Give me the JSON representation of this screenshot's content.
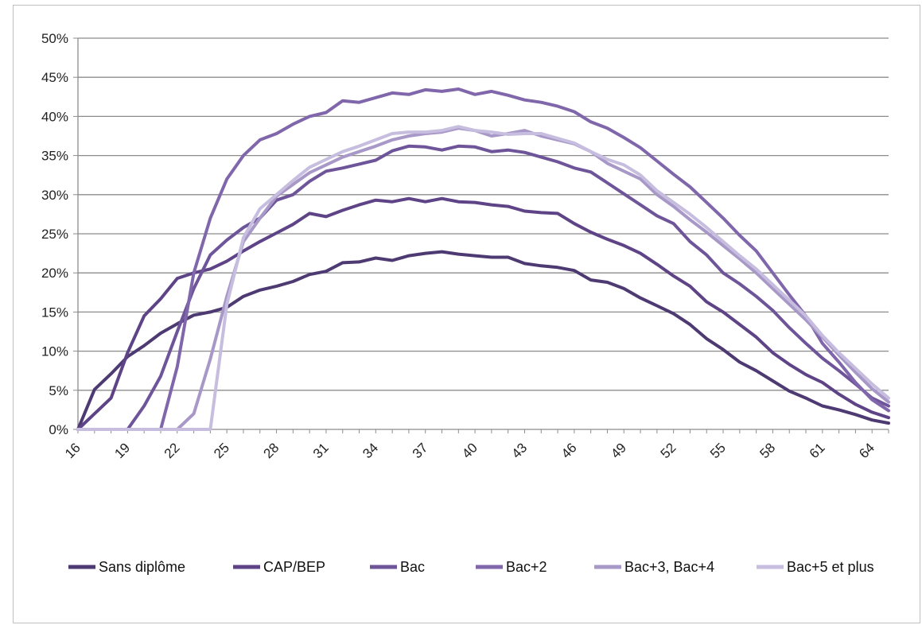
{
  "chart_data": {
    "type": "line",
    "title": "",
    "xlabel": "",
    "ylabel": "",
    "x": [
      16,
      17,
      18,
      19,
      20,
      21,
      22,
      23,
      24,
      25,
      26,
      27,
      28,
      29,
      30,
      31,
      32,
      33,
      34,
      35,
      36,
      37,
      38,
      39,
      40,
      41,
      42,
      43,
      44,
      45,
      46,
      47,
      48,
      49,
      50,
      51,
      52,
      53,
      54,
      55,
      56,
      57,
      58,
      59,
      60,
      61,
      62,
      63,
      64,
      65
    ],
    "xlim": [
      16,
      65
    ],
    "ylim": [
      0,
      0.5
    ],
    "x_ticks": [
      16,
      19,
      22,
      25,
      28,
      31,
      34,
      37,
      40,
      43,
      46,
      49,
      52,
      55,
      58,
      61,
      64
    ],
    "y_ticks": [
      0,
      0.05,
      0.1,
      0.15,
      0.2,
      0.25,
      0.3,
      0.35,
      0.4,
      0.45,
      0.5
    ],
    "y_tick_labels": [
      "0%",
      "5%",
      "10%",
      "15%",
      "20%",
      "25%",
      "30%",
      "35%",
      "40%",
      "45%",
      "50%"
    ],
    "grid": "horizontal",
    "legend_position": "bottom",
    "series": [
      {
        "name": "Sans diplôme",
        "color": "#4e3a72",
        "values": [
          0.0,
          0.051,
          0.071,
          0.093,
          0.107,
          0.123,
          0.135,
          0.146,
          0.15,
          0.156,
          0.17,
          0.178,
          0.183,
          0.189,
          0.198,
          0.202,
          0.213,
          0.214,
          0.219,
          0.216,
          0.222,
          0.225,
          0.227,
          0.224,
          0.222,
          0.22,
          0.22,
          0.212,
          0.209,
          0.207,
          0.203,
          0.191,
          0.188,
          0.18,
          0.168,
          0.158,
          0.148,
          0.134,
          0.116,
          0.102,
          0.086,
          0.075,
          0.062,
          0.049,
          0.04,
          0.03,
          0.025,
          0.019,
          0.012,
          0.008
        ]
      },
      {
        "name": "CAP/BEP",
        "color": "#5e4487",
        "values": [
          0.0,
          0.02,
          0.04,
          0.098,
          0.145,
          0.167,
          0.193,
          0.2,
          0.205,
          0.215,
          0.228,
          0.24,
          0.251,
          0.262,
          0.276,
          0.272,
          0.28,
          0.287,
          0.293,
          0.291,
          0.295,
          0.291,
          0.295,
          0.291,
          0.29,
          0.287,
          0.285,
          0.279,
          0.277,
          0.276,
          0.263,
          0.252,
          0.243,
          0.235,
          0.225,
          0.211,
          0.196,
          0.183,
          0.163,
          0.15,
          0.134,
          0.118,
          0.098,
          0.083,
          0.07,
          0.06,
          0.045,
          0.032,
          0.022,
          0.015
        ]
      },
      {
        "name": "Bac",
        "color": "#6e559a",
        "values": [
          0.0,
          0.0,
          0.0,
          0.0,
          0.03,
          0.068,
          0.125,
          0.18,
          0.223,
          0.242,
          0.258,
          0.27,
          0.293,
          0.3,
          0.317,
          0.33,
          0.334,
          0.339,
          0.344,
          0.356,
          0.362,
          0.361,
          0.357,
          0.362,
          0.361,
          0.355,
          0.357,
          0.354,
          0.348,
          0.342,
          0.334,
          0.329,
          0.315,
          0.301,
          0.287,
          0.273,
          0.263,
          0.24,
          0.223,
          0.2,
          0.186,
          0.17,
          0.152,
          0.13,
          0.11,
          0.091,
          0.075,
          0.058,
          0.04,
          0.03
        ]
      },
      {
        "name": "Bac+2",
        "color": "#8066aa",
        "values": [
          0.0,
          0.0,
          0.0,
          0.0,
          0.0,
          0.0,
          0.08,
          0.2,
          0.27,
          0.32,
          0.35,
          0.37,
          0.378,
          0.39,
          0.4,
          0.405,
          0.42,
          0.418,
          0.424,
          0.43,
          0.428,
          0.434,
          0.432,
          0.435,
          0.428,
          0.432,
          0.427,
          0.421,
          0.418,
          0.413,
          0.406,
          0.393,
          0.385,
          0.373,
          0.36,
          0.343,
          0.326,
          0.31,
          0.29,
          0.27,
          0.248,
          0.228,
          0.2,
          0.172,
          0.145,
          0.11,
          0.086,
          0.06,
          0.038,
          0.024
        ]
      },
      {
        "name": "Bac+3, Bac+4",
        "color": "#a898c8",
        "values": [
          0.0,
          0.0,
          0.0,
          0.0,
          0.0,
          0.0,
          0.0,
          0.02,
          0.09,
          0.17,
          0.24,
          0.27,
          0.298,
          0.313,
          0.328,
          0.338,
          0.348,
          0.355,
          0.362,
          0.37,
          0.375,
          0.378,
          0.38,
          0.385,
          0.382,
          0.375,
          0.378,
          0.382,
          0.375,
          0.37,
          0.365,
          0.355,
          0.34,
          0.33,
          0.32,
          0.3,
          0.285,
          0.268,
          0.252,
          0.235,
          0.218,
          0.2,
          0.18,
          0.16,
          0.14,
          0.118,
          0.095,
          0.073,
          0.052,
          0.035
        ]
      },
      {
        "name": "Bac+5 et plus",
        "color": "#c6bddf",
        "values": [
          0.0,
          0.0,
          0.0,
          0.0,
          0.0,
          0.0,
          0.0,
          0.0,
          0.0,
          0.16,
          0.245,
          0.282,
          0.3,
          0.318,
          0.335,
          0.345,
          0.355,
          0.362,
          0.37,
          0.378,
          0.38,
          0.38,
          0.382,
          0.387,
          0.382,
          0.38,
          0.377,
          0.378,
          0.378,
          0.372,
          0.366,
          0.355,
          0.345,
          0.338,
          0.325,
          0.305,
          0.29,
          0.275,
          0.258,
          0.24,
          0.222,
          0.205,
          0.185,
          0.165,
          0.145,
          0.12,
          0.098,
          0.078,
          0.058,
          0.04
        ]
      }
    ]
  }
}
